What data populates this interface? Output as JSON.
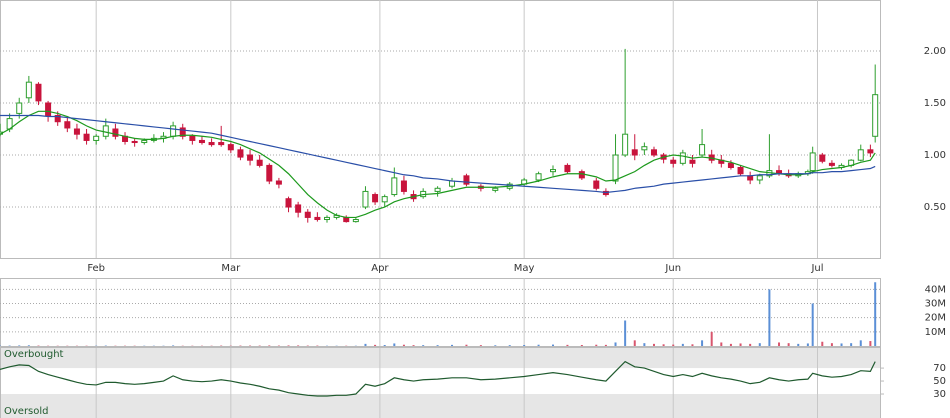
{
  "chart_data": [
    {
      "type": "candlestick",
      "x": [
        12,
        14,
        16,
        18,
        20,
        22,
        24,
        26,
        28,
        30,
        32,
        34,
        36,
        38,
        40,
        42,
        44,
        46,
        48,
        50,
        52,
        54,
        56,
        58,
        60,
        62,
        64,
        66,
        68,
        70,
        72,
        74,
        76,
        78,
        80,
        82,
        84,
        86,
        88,
        90,
        92,
        94,
        96,
        98,
        100,
        103,
        106,
        109,
        112,
        115,
        118,
        121,
        124,
        127,
        130,
        133,
        136,
        138,
        140,
        142,
        144,
        146,
        148,
        150,
        152,
        154,
        156,
        158,
        160,
        162,
        164,
        166,
        168,
        170,
        172,
        174,
        176,
        178,
        180,
        181,
        183,
        185,
        187,
        189,
        191,
        193,
        194
      ],
      "open": [
        1.2,
        1.25,
        1.4,
        1.55,
        1.68,
        1.5,
        1.38,
        1.32,
        1.25,
        1.2,
        1.14,
        1.18,
        1.25,
        1.18,
        1.13,
        1.12,
        1.14,
        1.16,
        1.18,
        1.26,
        1.18,
        1.14,
        1.12,
        1.12,
        1.1,
        1.05,
        1.0,
        0.95,
        0.9,
        0.75,
        0.58,
        0.52,
        0.45,
        0.4,
        0.38,
        0.4,
        0.4,
        0.36,
        0.5,
        0.62,
        0.55,
        0.62,
        0.75,
        0.62,
        0.6,
        0.65,
        0.7,
        0.8,
        0.7,
        0.66,
        0.68,
        0.72,
        0.76,
        0.84,
        0.9,
        0.84,
        0.75,
        0.65,
        0.75,
        1.0,
        1.05,
        1.05,
        1.05,
        1.0,
        0.95,
        0.92,
        0.95,
        1.0,
        1.0,
        0.95,
        0.92,
        0.88,
        0.8,
        0.76,
        0.8,
        0.85,
        0.82,
        0.8,
        0.82,
        0.85,
        1.0,
        0.92,
        0.88,
        0.9,
        0.95,
        1.05,
        1.18
      ],
      "high": [
        1.3,
        1.4,
        1.55,
        1.76,
        1.7,
        1.52,
        1.42,
        1.36,
        1.3,
        1.25,
        1.2,
        1.35,
        1.3,
        1.22,
        1.16,
        1.16,
        1.2,
        1.22,
        1.32,
        1.3,
        1.2,
        1.18,
        1.16,
        1.28,
        1.12,
        1.08,
        1.05,
        1.0,
        0.92,
        0.78,
        0.6,
        0.55,
        0.48,
        0.45,
        0.42,
        0.44,
        0.42,
        0.4,
        0.7,
        0.64,
        0.62,
        0.88,
        0.8,
        0.66,
        0.68,
        0.7,
        0.78,
        0.82,
        0.72,
        0.7,
        0.74,
        0.78,
        0.84,
        0.9,
        0.92,
        0.86,
        0.78,
        0.68,
        1.2,
        2.02,
        1.2,
        1.12,
        1.08,
        1.02,
        0.98,
        1.05,
        1.0,
        1.25,
        1.05,
        1.0,
        0.95,
        0.9,
        0.84,
        0.82,
        1.2,
        0.9,
        0.86,
        0.84,
        0.86,
        1.08,
        1.02,
        0.95,
        0.92,
        0.96,
        1.1,
        1.1,
        1.87
      ],
      "low": [
        1.18,
        1.22,
        1.35,
        1.5,
        1.48,
        1.32,
        1.28,
        1.22,
        1.15,
        1.1,
        1.1,
        1.15,
        1.15,
        1.1,
        1.08,
        1.1,
        1.12,
        1.12,
        1.15,
        1.15,
        1.1,
        1.1,
        1.08,
        1.08,
        1.02,
        0.95,
        0.9,
        0.88,
        0.72,
        0.68,
        0.45,
        0.4,
        0.35,
        0.36,
        0.35,
        0.38,
        0.35,
        0.35,
        0.48,
        0.52,
        0.5,
        0.6,
        0.62,
        0.55,
        0.58,
        0.6,
        0.68,
        0.7,
        0.65,
        0.64,
        0.66,
        0.7,
        0.74,
        0.8,
        0.82,
        0.76,
        0.66,
        0.6,
        0.72,
        0.98,
        0.95,
        1.0,
        0.98,
        0.92,
        0.88,
        0.9,
        0.88,
        0.98,
        0.92,
        0.88,
        0.86,
        0.8,
        0.72,
        0.72,
        0.78,
        0.8,
        0.78,
        0.78,
        0.8,
        0.82,
        0.92,
        0.88,
        0.86,
        0.88,
        0.94,
        0.98,
        1.12
      ],
      "close": [
        1.22,
        1.35,
        1.5,
        1.7,
        1.52,
        1.38,
        1.32,
        1.26,
        1.2,
        1.14,
        1.18,
        1.28,
        1.18,
        1.13,
        1.12,
        1.14,
        1.16,
        1.18,
        1.28,
        1.18,
        1.14,
        1.12,
        1.1,
        1.1,
        1.05,
        0.98,
        0.95,
        0.9,
        0.75,
        0.72,
        0.5,
        0.45,
        0.4,
        0.38,
        0.4,
        0.42,
        0.36,
        0.38,
        0.65,
        0.55,
        0.6,
        0.78,
        0.65,
        0.58,
        0.65,
        0.68,
        0.75,
        0.72,
        0.68,
        0.68,
        0.72,
        0.76,
        0.82,
        0.86,
        0.84,
        0.78,
        0.68,
        0.62,
        1.0,
        1.2,
        1.0,
        1.08,
        1.0,
        0.96,
        0.92,
        1.02,
        0.92,
        1.1,
        0.95,
        0.92,
        0.88,
        0.82,
        0.76,
        0.8,
        0.85,
        0.82,
        0.8,
        0.82,
        0.84,
        1.02,
        0.94,
        0.9,
        0.9,
        0.95,
        1.05,
        1.02,
        1.58
      ],
      "up_color": "#2e9e2e",
      "down_color": "#c8143c",
      "series": [
        {
          "color": "#1d9a1d",
          "values": [
            1.2,
            1.25,
            1.32,
            1.38,
            1.42,
            1.42,
            1.4,
            1.37,
            1.33,
            1.28,
            1.24,
            1.22,
            1.2,
            1.18,
            1.16,
            1.15,
            1.15,
            1.16,
            1.18,
            1.19,
            1.19,
            1.18,
            1.17,
            1.15,
            1.13,
            1.1,
            1.06,
            1.02,
            0.96,
            0.9,
            0.82,
            0.72,
            0.62,
            0.54,
            0.47,
            0.42,
            0.4,
            0.4,
            0.43,
            0.47,
            0.5,
            0.55,
            0.58,
            0.6,
            0.62,
            0.63,
            0.66,
            0.69,
            0.69,
            0.69,
            0.7,
            0.72,
            0.75,
            0.79,
            0.82,
            0.82,
            0.79,
            0.75,
            0.76,
            0.8,
            0.84,
            0.9,
            0.95,
            0.98,
            1.0,
            0.99,
            0.97,
            0.98,
            0.97,
            0.95,
            0.93,
            0.9,
            0.87,
            0.84,
            0.83,
            0.82,
            0.81,
            0.81,
            0.82,
            0.84,
            0.86,
            0.87,
            0.88,
            0.9,
            0.93,
            0.95,
            1.02
          ]
        },
        {
          "color": "#2a4fa8",
          "values": [
            1.38,
            1.38,
            1.38,
            1.38,
            1.38,
            1.37,
            1.37,
            1.36,
            1.35,
            1.34,
            1.33,
            1.32,
            1.31,
            1.3,
            1.29,
            1.28,
            1.27,
            1.26,
            1.25,
            1.24,
            1.23,
            1.22,
            1.21,
            1.19,
            1.17,
            1.15,
            1.13,
            1.11,
            1.09,
            1.07,
            1.05,
            1.03,
            1.01,
            0.99,
            0.97,
            0.95,
            0.93,
            0.91,
            0.89,
            0.87,
            0.85,
            0.83,
            0.81,
            0.8,
            0.78,
            0.77,
            0.75,
            0.74,
            0.73,
            0.72,
            0.71,
            0.7,
            0.69,
            0.68,
            0.67,
            0.66,
            0.65,
            0.64,
            0.65,
            0.66,
            0.68,
            0.69,
            0.7,
            0.72,
            0.73,
            0.74,
            0.75,
            0.76,
            0.77,
            0.78,
            0.79,
            0.8,
            0.8,
            0.81,
            0.81,
            0.82,
            0.82,
            0.82,
            0.82,
            0.83,
            0.83,
            0.84,
            0.84,
            0.85,
            0.86,
            0.87,
            0.89
          ]
        }
      ],
      "xlim": [
        12,
        195
      ],
      "xticks": [
        {
          "value": 32,
          "label": "Feb"
        },
        {
          "value": 60,
          "label": "Mar"
        },
        {
          "value": 91,
          "label": "Apr"
        },
        {
          "value": 121,
          "label": "May"
        },
        {
          "value": 152,
          "label": "Jun"
        },
        {
          "value": 182,
          "label": "Jul"
        }
      ],
      "ylim": [
        0.01,
        2.49
      ],
      "yticks": [
        {
          "value": 0.5,
          "label": "0.50"
        },
        {
          "value": 1,
          "label": "1.00"
        },
        {
          "value": 1.5,
          "label": "1.50"
        },
        {
          "value": 2,
          "label": "2.00"
        }
      ],
      "grid": true
    },
    {
      "type": "bar",
      "x": [
        12,
        14,
        16,
        18,
        20,
        22,
        24,
        26,
        28,
        30,
        32,
        34,
        36,
        38,
        40,
        42,
        44,
        46,
        48,
        50,
        52,
        54,
        56,
        58,
        60,
        62,
        64,
        66,
        68,
        70,
        72,
        74,
        76,
        78,
        80,
        82,
        84,
        86,
        88,
        90,
        92,
        94,
        96,
        98,
        100,
        103,
        106,
        109,
        112,
        115,
        118,
        121,
        124,
        127,
        130,
        133,
        136,
        138,
        140,
        142,
        144,
        146,
        148,
        150,
        152,
        154,
        156,
        158,
        160,
        162,
        164,
        166,
        168,
        170,
        172,
        174,
        176,
        178,
        180,
        181,
        183,
        185,
        187,
        189,
        191,
        193,
        194
      ],
      "values": [
        300000,
        300000,
        400000,
        500000,
        300000,
        200000,
        200000,
        200000,
        200000,
        200000,
        200000,
        300000,
        200000,
        200000,
        200000,
        200000,
        200000,
        200000,
        400000,
        200000,
        200000,
        200000,
        200000,
        300000,
        200000,
        300000,
        300000,
        300000,
        400000,
        300000,
        400000,
        400000,
        300000,
        300000,
        200000,
        200000,
        200000,
        200000,
        1500000,
        800000,
        700000,
        1800000,
        900000,
        600000,
        600000,
        600000,
        800000,
        900000,
        600000,
        500000,
        600000,
        700000,
        900000,
        1000000,
        800000,
        700000,
        900000,
        800000,
        2500000,
        18000000,
        4000000,
        2000000,
        1500000,
        1200000,
        1000000,
        1500000,
        1200000,
        4000000,
        10000000,
        2500000,
        1500000,
        1800000,
        1500000,
        2000000,
        40000000,
        2500000,
        2000000,
        1500000,
        1800000,
        30000000,
        3000000,
        2000000,
        1800000,
        2000000,
        4000000,
        3500000,
        45000000
      ],
      "up_color": "#5b8fd6",
      "down_color": "#d9566e",
      "xlim": [
        12,
        195
      ],
      "ylim": [
        0,
        48000000
      ],
      "yticks": [
        {
          "value": 10000000,
          "label": "10M"
        },
        {
          "value": 20000000,
          "label": "20M"
        },
        {
          "value": 30000000,
          "label": "30M"
        },
        {
          "value": 40000000,
          "label": "40M"
        }
      ],
      "grid": true
    },
    {
      "type": "line",
      "x": [
        12,
        14,
        16,
        18,
        20,
        22,
        24,
        26,
        28,
        30,
        32,
        34,
        36,
        38,
        40,
        42,
        44,
        46,
        48,
        50,
        52,
        54,
        56,
        58,
        60,
        62,
        64,
        66,
        68,
        70,
        72,
        74,
        76,
        78,
        80,
        82,
        84,
        86,
        88,
        90,
        92,
        94,
        96,
        98,
        100,
        103,
        106,
        109,
        112,
        115,
        118,
        121,
        124,
        127,
        130,
        133,
        136,
        138,
        140,
        142,
        144,
        146,
        148,
        150,
        152,
        154,
        156,
        158,
        160,
        162,
        164,
        166,
        168,
        170,
        172,
        174,
        176,
        178,
        180,
        181,
        183,
        185,
        187,
        189,
        191,
        193,
        194
      ],
      "series": [
        {
          "color": "#1f5a2e",
          "values": [
            68,
            72,
            75,
            74,
            65,
            60,
            56,
            52,
            48,
            45,
            44,
            48,
            48,
            46,
            45,
            46,
            48,
            50,
            58,
            52,
            50,
            49,
            50,
            52,
            50,
            47,
            45,
            42,
            38,
            36,
            32,
            30,
            28,
            27,
            27,
            28,
            28,
            30,
            45,
            42,
            46,
            55,
            52,
            50,
            52,
            53,
            55,
            55,
            52,
            53,
            55,
            57,
            60,
            63,
            60,
            56,
            52,
            50,
            65,
            80,
            72,
            70,
            65,
            60,
            57,
            60,
            57,
            62,
            58,
            55,
            53,
            50,
            46,
            48,
            55,
            52,
            50,
            52,
            53,
            62,
            58,
            56,
            57,
            60,
            66,
            65,
            80
          ]
        }
      ],
      "annotations": [
        "Overbought",
        "Oversold"
      ],
      "xlim": [
        12,
        195
      ],
      "ylim": [
        -7,
        101
      ],
      "yticks": [
        30,
        50,
        70
      ],
      "band_color": "#e6e6e6"
    }
  ]
}
